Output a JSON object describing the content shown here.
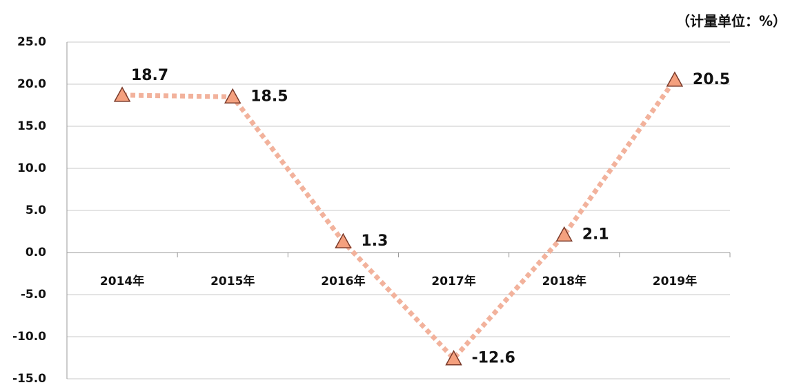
{
  "chart_data": {
    "type": "line",
    "unit_note": "（计量单位：%）",
    "categories": [
      "2014年",
      "2015年",
      "2016年",
      "2017年",
      "2018年",
      "2019年"
    ],
    "values": [
      18.7,
      18.5,
      1.3,
      -12.6,
      2.1,
      20.5
    ],
    "color": "#f2b29c",
    "marker_color": "#f4a07e",
    "ylim": [
      -15,
      25
    ],
    "yticks": [
      {
        "value": -15,
        "label": "-15.0"
      },
      {
        "value": -10,
        "label": "-10.0"
      },
      {
        "value": -5,
        "label": "-5.0"
      },
      {
        "value": 0,
        "label": "0.0"
      },
      {
        "value": 5,
        "label": "5.0"
      },
      {
        "value": 10,
        "label": "10.0"
      },
      {
        "value": 15,
        "label": "15.0"
      },
      {
        "value": 20,
        "label": "20.0"
      },
      {
        "value": 25,
        "label": "25.0"
      }
    ],
    "grid": true
  }
}
